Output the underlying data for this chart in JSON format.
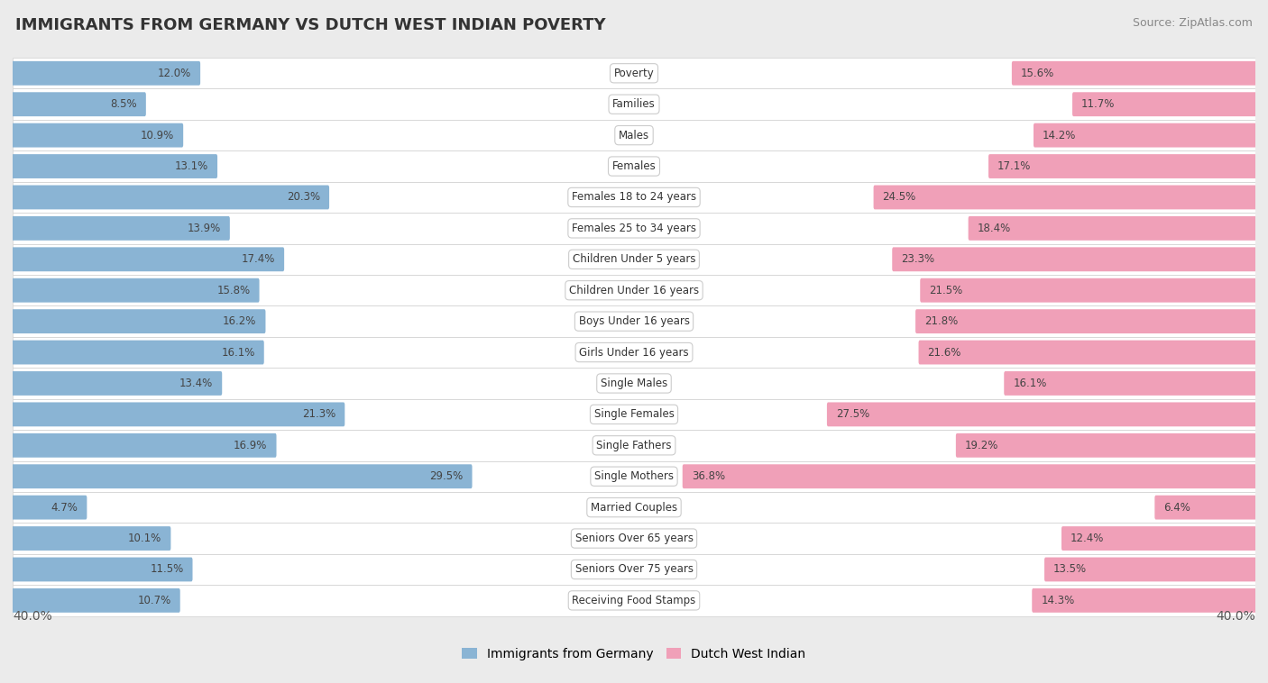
{
  "title": "IMMIGRANTS FROM GERMANY VS DUTCH WEST INDIAN POVERTY",
  "source": "Source: ZipAtlas.com",
  "categories": [
    "Poverty",
    "Families",
    "Males",
    "Females",
    "Females 18 to 24 years",
    "Females 25 to 34 years",
    "Children Under 5 years",
    "Children Under 16 years",
    "Boys Under 16 years",
    "Girls Under 16 years",
    "Single Males",
    "Single Females",
    "Single Fathers",
    "Single Mothers",
    "Married Couples",
    "Seniors Over 65 years",
    "Seniors Over 75 years",
    "Receiving Food Stamps"
  ],
  "germany_values": [
    12.0,
    8.5,
    10.9,
    13.1,
    20.3,
    13.9,
    17.4,
    15.8,
    16.2,
    16.1,
    13.4,
    21.3,
    16.9,
    29.5,
    4.7,
    10.1,
    11.5,
    10.7
  ],
  "dutch_values": [
    15.6,
    11.7,
    14.2,
    17.1,
    24.5,
    18.4,
    23.3,
    21.5,
    21.8,
    21.6,
    16.1,
    27.5,
    19.2,
    36.8,
    6.4,
    12.4,
    13.5,
    14.3
  ],
  "germany_color": "#8ab4d4",
  "dutch_color": "#f0a0b8",
  "axis_limit": 40.0,
  "background_color": "#ebebeb",
  "row_bg_color": "#ffffff",
  "title_fontsize": 13,
  "legend_germany": "Immigrants from Germany",
  "legend_dutch": "Dutch West Indian"
}
